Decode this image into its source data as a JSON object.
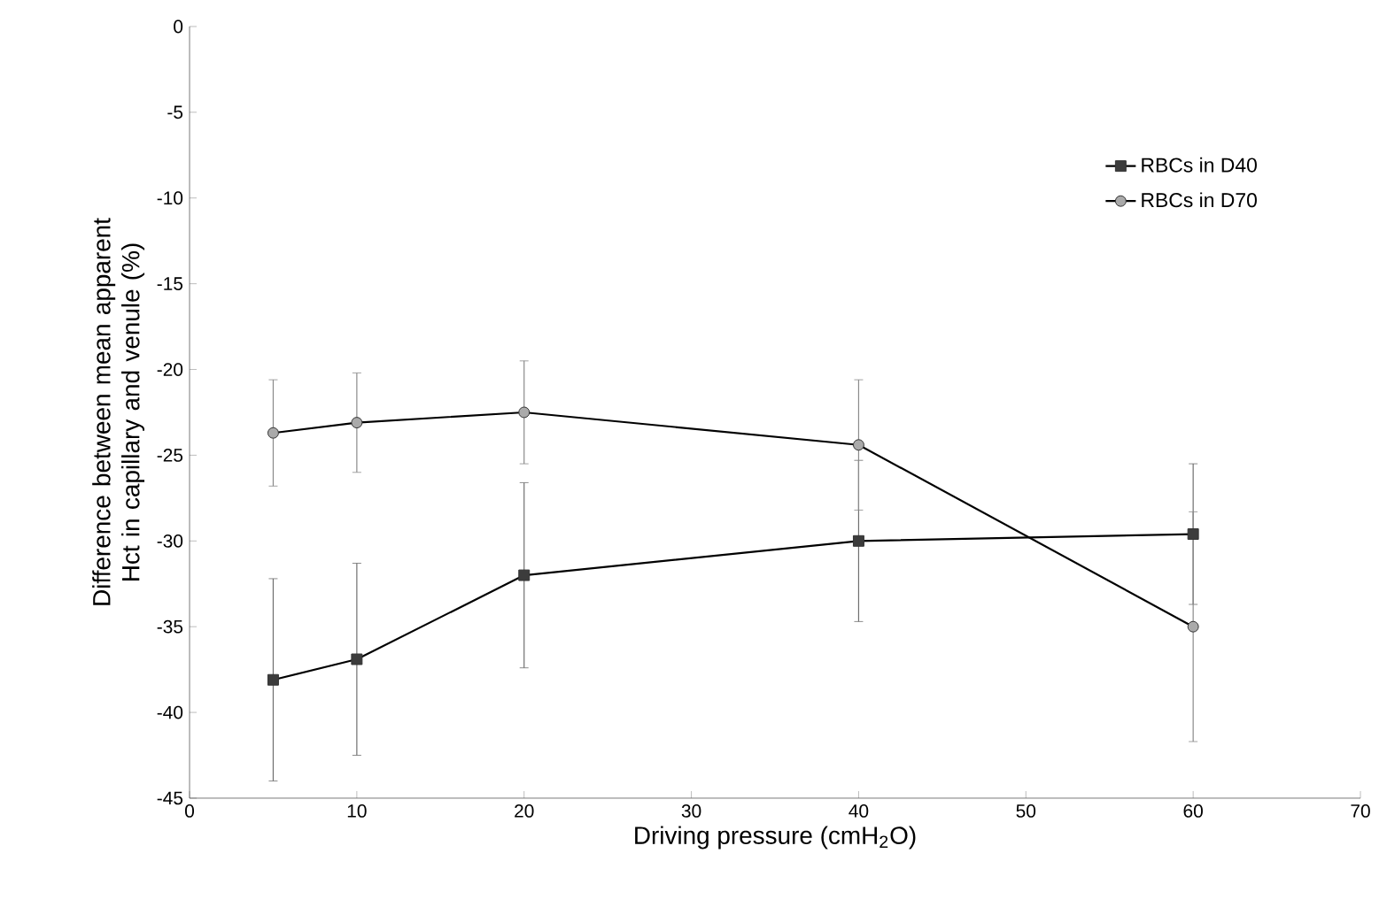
{
  "chart_data": {
    "type": "line",
    "xlabel": "Driving pressure (cmH$_{2}$O)",
    "ylabel": "Difference between mean apparent Hct in capillary and venule (%)",
    "x": [
      5,
      10,
      20,
      40,
      60
    ],
    "series": [
      {
        "name": "RBCs in D40",
        "color": "#3c3c3c",
        "marker": "square",
        "values": [
          -38.1,
          -36.9,
          -32.0,
          -30.0,
          -29.6
        ],
        "errors": [
          5.9,
          5.6,
          5.4,
          4.7,
          4.1
        ]
      },
      {
        "name": "RBCs in D70",
        "color": "#aaaaaa",
        "marker": "circle",
        "values": [
          -23.7,
          -23.1,
          -22.5,
          -24.4,
          -35.0
        ],
        "errors": [
          3.1,
          2.9,
          3.0,
          3.8,
          6.7
        ]
      }
    ],
    "xlim": [
      0,
      70
    ],
    "xticks": [
      0,
      10,
      20,
      30,
      40,
      50,
      60,
      70
    ],
    "ylim": [
      -45,
      0
    ],
    "yticks": [
      -45,
      -40,
      -35,
      -30,
      -25,
      -20,
      -15,
      -10,
      -5,
      0
    ],
    "legend": "top right",
    "grid": false
  }
}
